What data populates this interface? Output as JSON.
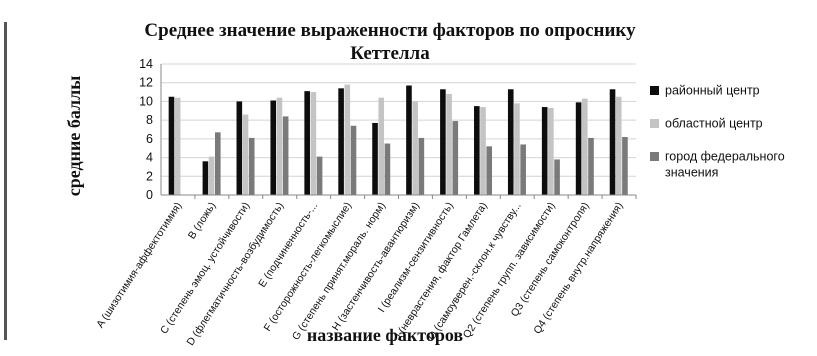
{
  "chart_data": {
    "type": "bar",
    "title_lines": [
      "Среднее значение выраженности факторов по опроснику",
      "Кеттелла"
    ],
    "xlabel": "название факторов",
    "ylabel": "средние баллы",
    "ylim": [
      0,
      14
    ],
    "yticks": [
      0,
      2,
      4,
      6,
      8,
      10,
      12,
      14
    ],
    "grid": true,
    "legend_position": "right",
    "categories": [
      "A (шизотимия-аффектотимия)",
      "B (ложь)",
      "C (степень эмоц. устойчивости)",
      "D (флегматичность-возбудимость)",
      "E (подчиненность-...",
      "F (осторожность-легкомыслие)",
      "G (степень принят.мораль. норм)",
      "H (застенчивость-авантюризм)",
      "I (реализм-сензитивность)",
      "J (неврастения, фактор Гамлета)",
      "O (самоуверен.-склон.к чувству...",
      "Q2 (степень групп. зависимости)",
      "Q3 (степень самоконтроля)",
      "Q4 (степень внутр.напряжения)"
    ],
    "series": [
      {
        "name": "районный центр",
        "color": "#0d0d0d",
        "values": [
          10.5,
          3.6,
          10.0,
          10.1,
          11.1,
          11.4,
          7.7,
          11.7,
          11.3,
          9.5,
          11.3,
          9.4,
          9.9,
          11.3
        ]
      },
      {
        "name": "областной центр",
        "color": "#c4c4c4",
        "values": [
          10.4,
          4.1,
          8.6,
          10.4,
          11.0,
          11.8,
          10.4,
          10.0,
          10.8,
          9.4,
          9.8,
          9.3,
          10.3,
          10.5
        ]
      },
      {
        "name": "город федерального значения",
        "color": "#7a7a7a",
        "values": [
          null,
          6.7,
          6.1,
          8.4,
          4.1,
          7.4,
          5.5,
          6.1,
          7.9,
          5.2,
          5.4,
          3.8,
          6.1,
          6.2
        ]
      }
    ]
  }
}
